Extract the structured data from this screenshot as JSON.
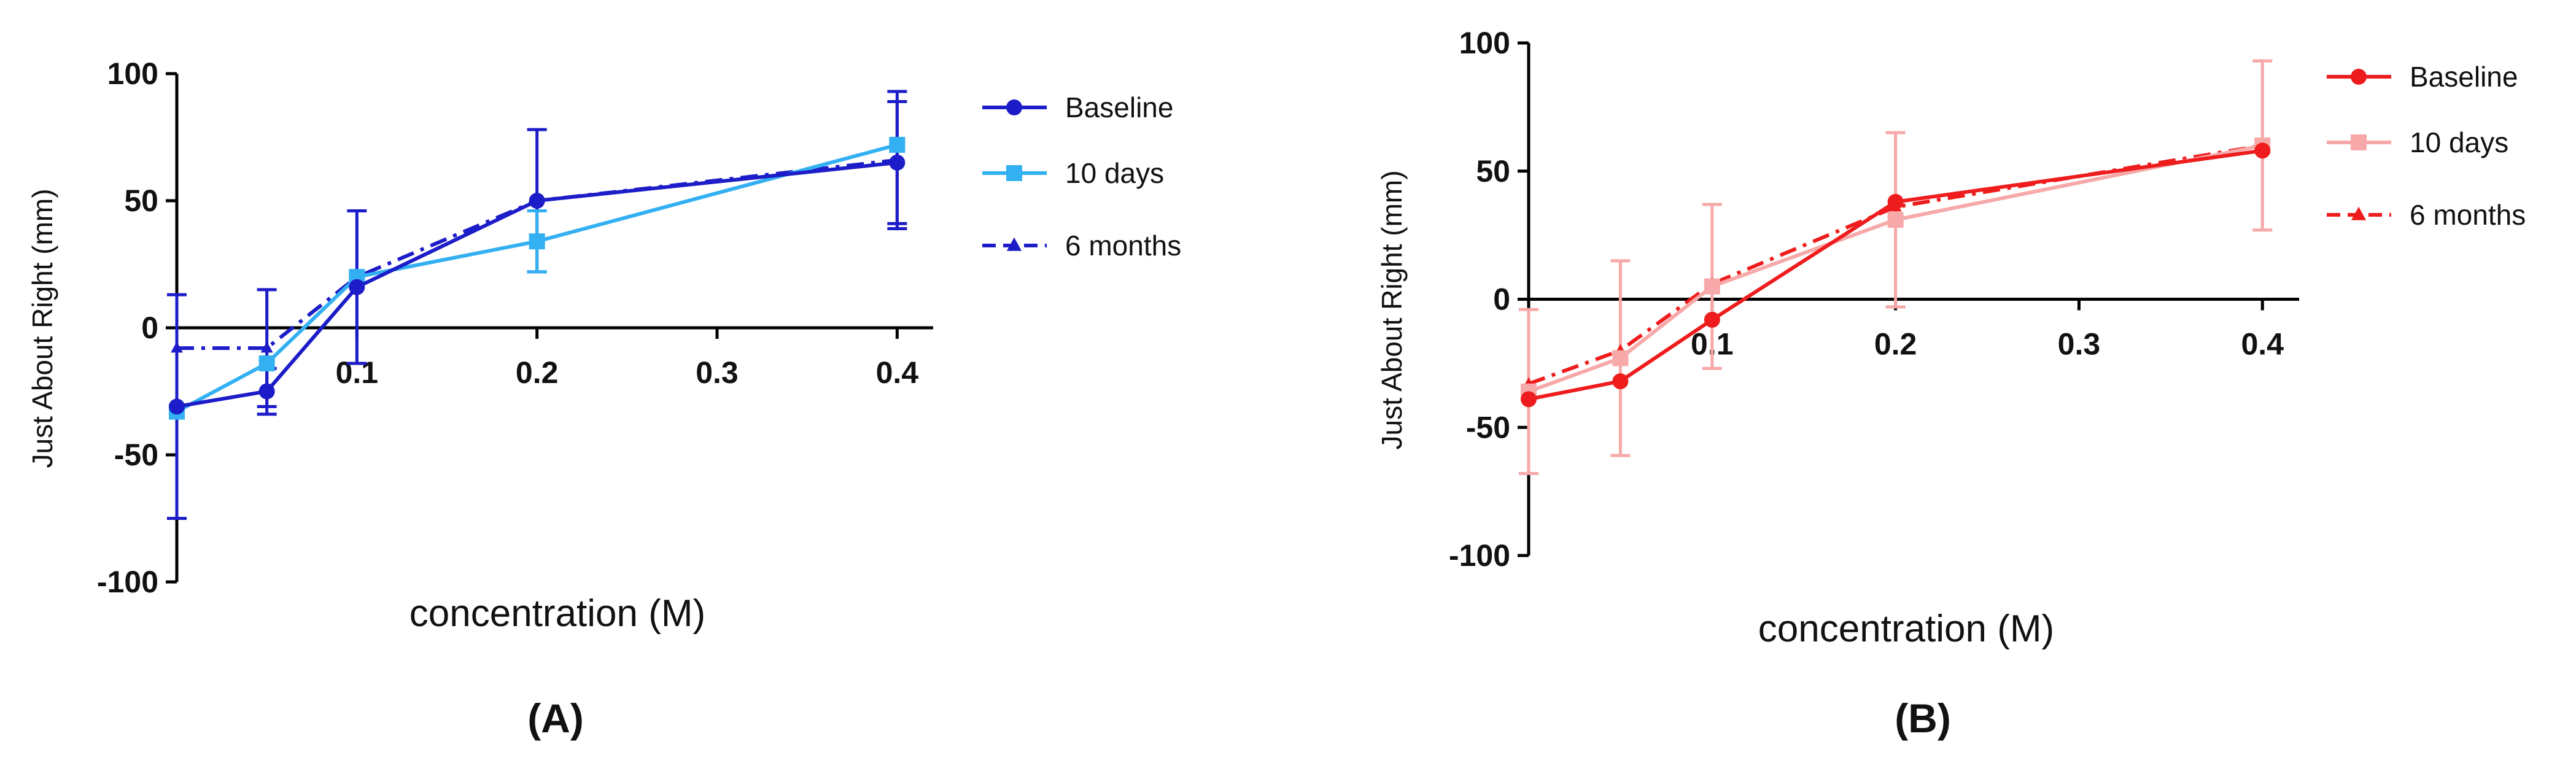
{
  "chart_data": [
    {
      "type": "line",
      "panel_label": "(A)",
      "xlabel": "concentration (M)",
      "ylabel": "Just About Right (mm)",
      "xlim": [
        0,
        0.42
      ],
      "ylim": [
        -100,
        100
      ],
      "yticks": [
        -100,
        -50,
        0,
        50,
        100
      ],
      "xticks": [
        0.1,
        0.2,
        0.3,
        0.4
      ],
      "x": [
        0,
        0.05,
        0.1,
        0.2,
        0.4
      ],
      "series": [
        {
          "name": "Baseline",
          "color": "#1c1cc8",
          "marker": "circle",
          "dash": "solid",
          "values": [
            -31,
            -25,
            16,
            50,
            65
          ],
          "err": [
            44,
            9,
            30,
            28,
            24
          ]
        },
        {
          "name": "10 days",
          "color": "#33b0f2",
          "marker": "square",
          "dash": "solid",
          "values": [
            -33,
            -14,
            20,
            34,
            72
          ],
          "err": [
            null,
            null,
            null,
            12,
            null
          ]
        },
        {
          "name": "6 months",
          "color": "#1c1cc8",
          "marker": "triangle",
          "dash": "dashdot",
          "values": [
            -8,
            -8,
            20,
            50,
            66
          ],
          "err": [
            null,
            23,
            null,
            null,
            27
          ]
        }
      ]
    },
    {
      "type": "line",
      "panel_label": "(B)",
      "xlabel": "concentration (M)",
      "ylabel": "Just About Right (mm)",
      "xlim": [
        0,
        0.42
      ],
      "ylim": [
        -100,
        100
      ],
      "yticks": [
        -100,
        -50,
        0,
        50,
        100
      ],
      "xticks": [
        0.1,
        0.2,
        0.3,
        0.4
      ],
      "x": [
        0,
        0.05,
        0.1,
        0.2,
        0.4
      ],
      "series": [
        {
          "name": "Baseline",
          "color": "#ee1c1c",
          "marker": "circle",
          "dash": "solid",
          "values": [
            -39,
            -32,
            -8,
            38,
            58
          ],
          "err": [
            null,
            null,
            null,
            null,
            null
          ]
        },
        {
          "name": "10 days",
          "color": "#f7a8a8",
          "marker": "square",
          "dash": "solid",
          "values": [
            -36,
            -23,
            5,
            31,
            60
          ],
          "err": [
            32,
            38,
            32,
            34,
            33
          ]
        },
        {
          "name": "6 months",
          "color": "#ee1c1c",
          "marker": "triangle",
          "dash": "dashdot",
          "values": [
            -33,
            -20,
            6,
            36,
            60
          ],
          "err": [
            null,
            null,
            null,
            null,
            null
          ]
        }
      ]
    }
  ]
}
